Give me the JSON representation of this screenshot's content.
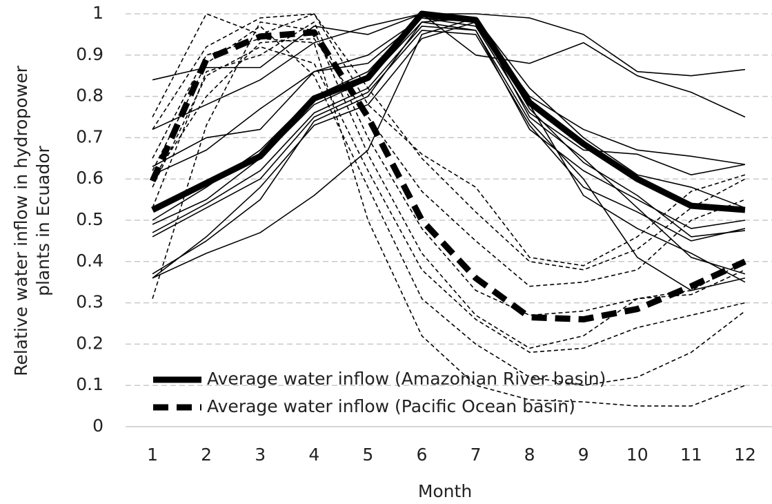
{
  "chart_data": {
    "type": "line",
    "ylabel": [
      "Relative water inflow in hydropower",
      "plants in Ecuador"
    ],
    "xlabel": "Month",
    "x": [
      1,
      2,
      3,
      4,
      5,
      6,
      7,
      8,
      9,
      10,
      11,
      12
    ],
    "xlim": [
      0.5,
      12.5
    ],
    "xticks": [
      1,
      2,
      3,
      4,
      5,
      6,
      7,
      8,
      9,
      10,
      11,
      12
    ],
    "ylim": [
      0,
      1
    ],
    "yticks": [
      0,
      0.1,
      0.2,
      0.3,
      0.4,
      0.5,
      0.6,
      0.7,
      0.8,
      0.9,
      1
    ],
    "grid": true,
    "legend": "lower left",
    "series": [
      {
        "color": "#000000",
        "dashed": false,
        "bold": false,
        "values": [
          0.84,
          0.87,
          0.87,
          0.97,
          0.95,
          1.0,
          1.0,
          0.99,
          0.95,
          0.86,
          0.85,
          0.865
        ]
      },
      {
        "color": "#000000",
        "dashed": false,
        "bold": false,
        "values": [
          0.72,
          0.78,
          0.84,
          0.93,
          0.97,
          1.0,
          0.9,
          0.88,
          0.93,
          0.85,
          0.81,
          0.75
        ]
      },
      {
        "color": "#000000",
        "dashed": false,
        "bold": false,
        "values": [
          0.63,
          0.7,
          0.72,
          0.86,
          0.88,
          0.99,
          0.98,
          0.8,
          0.72,
          0.67,
          0.655,
          0.635
        ]
      },
      {
        "color": "#000000",
        "dashed": false,
        "bold": false,
        "values": [
          0.61,
          0.67,
          0.77,
          0.86,
          0.9,
          0.99,
          0.97,
          0.76,
          0.67,
          0.66,
          0.61,
          0.635
        ]
      },
      {
        "color": "#000000",
        "dashed": false,
        "bold": false,
        "values": [
          0.49,
          0.55,
          0.65,
          0.78,
          0.84,
          0.98,
          0.96,
          0.74,
          0.6,
          0.41,
          0.33,
          0.36
        ]
      },
      {
        "color": "#000000",
        "dashed": false,
        "bold": false,
        "values": [
          0.47,
          0.54,
          0.62,
          0.76,
          0.82,
          0.97,
          0.96,
          0.72,
          0.62,
          0.55,
          0.48,
          0.5
        ]
      },
      {
        "color": "#000000",
        "dashed": false,
        "bold": false,
        "values": [
          0.46,
          0.53,
          0.6,
          0.75,
          0.81,
          0.96,
          0.95,
          0.73,
          0.58,
          0.52,
          0.45,
          0.48
        ]
      },
      {
        "color": "#000000",
        "dashed": false,
        "bold": false,
        "values": [
          0.37,
          0.45,
          0.55,
          0.74,
          0.8,
          0.98,
          0.99,
          0.77,
          0.64,
          0.56,
          0.46,
          0.475
        ]
      },
      {
        "color": "#000000",
        "dashed": false,
        "bold": false,
        "values": [
          0.36,
          0.42,
          0.47,
          0.56,
          0.67,
          0.95,
          0.99,
          0.75,
          0.65,
          0.53,
          0.41,
          0.37
        ]
      },
      {
        "color": "#000000",
        "dashed": false,
        "bold": false,
        "values": [
          0.36,
          0.46,
          0.58,
          0.73,
          0.78,
          0.94,
          0.98,
          0.78,
          0.56,
          0.48,
          0.42,
          0.35
        ]
      },
      {
        "color": "#000000",
        "dashed": false,
        "bold": false,
        "values": [
          0.5,
          0.58,
          0.67,
          0.8,
          0.86,
          1.0,
          0.99,
          0.82,
          0.7,
          0.61,
          0.58,
          0.53
        ]
      },
      {
        "color": "#000000",
        "dashed": true,
        "bold": false,
        "values": [
          0.75,
          1.0,
          0.95,
          1.0,
          0.78,
          0.66,
          0.58,
          0.41,
          0.39,
          0.46,
          0.57,
          0.61
        ]
      },
      {
        "color": "#000000",
        "dashed": true,
        "bold": false,
        "values": [
          0.72,
          0.92,
          0.99,
          1.0,
          0.82,
          0.65,
          0.52,
          0.4,
          0.38,
          0.43,
          0.53,
          0.6
        ]
      },
      {
        "color": "#000000",
        "dashed": true,
        "bold": false,
        "values": [
          0.6,
          0.8,
          0.93,
          0.94,
          0.75,
          0.57,
          0.45,
          0.34,
          0.35,
          0.38,
          0.5,
          0.55
        ]
      },
      {
        "color": "#000000",
        "dashed": true,
        "bold": false,
        "values": [
          0.53,
          0.86,
          0.9,
          0.98,
          0.7,
          0.48,
          0.33,
          0.27,
          0.28,
          0.31,
          0.33,
          0.4
        ]
      },
      {
        "color": "#000000",
        "dashed": true,
        "bold": false,
        "values": [
          0.31,
          0.73,
          0.98,
          0.96,
          0.66,
          0.42,
          0.27,
          0.19,
          0.22,
          0.31,
          0.32,
          0.38
        ]
      },
      {
        "color": "#000000",
        "dashed": true,
        "bold": false,
        "values": [
          0.58,
          0.85,
          0.92,
          0.88,
          0.62,
          0.38,
          0.26,
          0.18,
          0.19,
          0.24,
          0.27,
          0.3
        ]
      },
      {
        "color": "#000000",
        "dashed": true,
        "bold": false,
        "values": [
          0.62,
          0.88,
          0.97,
          0.85,
          0.58,
          0.31,
          0.2,
          0.12,
          0.1,
          0.12,
          0.18,
          0.28
        ]
      },
      {
        "color": "#000000",
        "dashed": true,
        "bold": false,
        "values": [
          0.65,
          0.9,
          0.94,
          0.93,
          0.5,
          0.22,
          0.1,
          0.065,
          0.06,
          0.05,
          0.05,
          0.1
        ]
      },
      {
        "name": "Average water inflow (Amazonian River basin)",
        "color": "#000000",
        "dashed": false,
        "bold": true,
        "values": [
          0.525,
          0.59,
          0.655,
          0.795,
          0.845,
          1.0,
          0.985,
          0.785,
          0.685,
          0.6,
          0.535,
          0.525
        ]
      },
      {
        "name": "Average water inflow (Pacific Ocean basin)",
        "color": "#000000",
        "dashed": true,
        "bold": true,
        "values": [
          0.595,
          0.89,
          0.945,
          0.955,
          0.75,
          0.5,
          0.36,
          0.265,
          0.26,
          0.285,
          0.34,
          0.4
        ]
      }
    ]
  }
}
